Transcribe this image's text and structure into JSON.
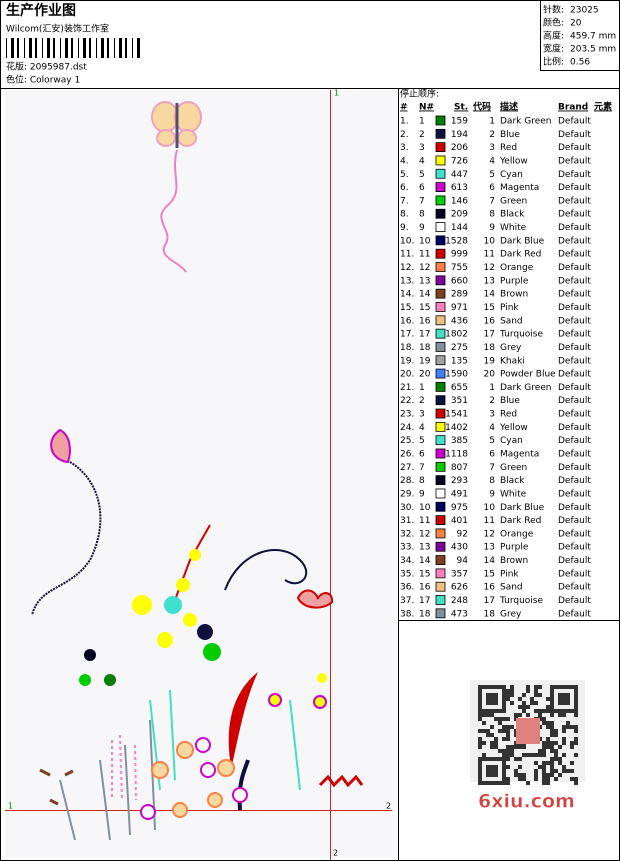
{
  "header": {
    "title": "生产作业图",
    "company": "Wilcom(汇安)装饰工作室",
    "design": "花版: 2095987.dst",
    "colorway": "色位: Colorway 1"
  },
  "stats": [
    {
      "label": "针数:",
      "value": "23025"
    },
    {
      "label": "颜色:",
      "value": "20"
    },
    {
      "label": "高度:",
      "value": "459.7 mm"
    },
    {
      "label": "宽度:",
      "value": "203.5 mm"
    },
    {
      "label": "比例:",
      "value": "0.56"
    }
  ],
  "table": {
    "title": "停止顺序:",
    "headers": [
      "#",
      "N#",
      "St.",
      "代码",
      "描述",
      "Brand",
      "元素"
    ],
    "rows": [
      {
        "index": "1.",
        "needle": "1",
        "color": "#008000",
        "stitches": 159,
        "code": "1",
        "description": "Dark Green",
        "brand": "Default"
      },
      {
        "index": "2.",
        "needle": "2",
        "color": "#101040",
        "stitches": 194,
        "code": "2",
        "description": "Blue",
        "brand": "Default"
      },
      {
        "index": "3.",
        "needle": "3",
        "color": "#d00000",
        "stitches": 206,
        "code": "3",
        "description": "Red",
        "brand": "Default"
      },
      {
        "index": "4.",
        "needle": "4",
        "color": "#ffff00",
        "stitches": 726,
        "code": "4",
        "description": "Yellow",
        "brand": "Default"
      },
      {
        "index": "5.",
        "needle": "5",
        "color": "#40e0d0",
        "stitches": 447,
        "code": "5",
        "description": "Cyan",
        "brand": "Default"
      },
      {
        "index": "6.",
        "needle": "6",
        "color": "#cc00cc",
        "stitches": 613,
        "code": "6",
        "description": "Magenta",
        "brand": "Default"
      },
      {
        "index": "7.",
        "needle": "7",
        "color": "#00cc00",
        "stitches": 146,
        "code": "7",
        "description": "Green",
        "brand": "Default"
      },
      {
        "index": "8.",
        "needle": "8",
        "color": "#000020",
        "stitches": 209,
        "code": "8",
        "description": "Black",
        "brand": "Default"
      },
      {
        "index": "9.",
        "needle": "9",
        "color": "#ffffff",
        "stitches": 144,
        "code": "9",
        "description": "White",
        "brand": "Default"
      },
      {
        "index": "10.",
        "needle": "10",
        "color": "#000060",
        "stitches": 1528,
        "code": "10",
        "description": "Dark Blue",
        "brand": "Default"
      },
      {
        "index": "11.",
        "needle": "11",
        "color": "#cc0000",
        "stitches": 999,
        "code": "11",
        "description": "Dark Red",
        "brand": "Default"
      },
      {
        "index": "12.",
        "needle": "12",
        "color": "#ff8040",
        "stitches": 755,
        "code": "12",
        "description": "Orange",
        "brand": "Default"
      },
      {
        "index": "13.",
        "needle": "13",
        "color": "#8000a0",
        "stitches": 660,
        "code": "13",
        "description": "Purple",
        "brand": "Default"
      },
      {
        "index": "14.",
        "needle": "14",
        "color": "#804020",
        "stitches": 289,
        "code": "14",
        "description": "Brown",
        "brand": "Default"
      },
      {
        "index": "15.",
        "needle": "15",
        "color": "#ff80c0",
        "stitches": 971,
        "code": "15",
        "description": "Pink",
        "brand": "Default"
      },
      {
        "index": "16.",
        "needle": "16",
        "color": "#f0c080",
        "stitches": 436,
        "code": "16",
        "description": "Sand",
        "brand": "Default"
      },
      {
        "index": "17.",
        "needle": "17",
        "color": "#40e0c0",
        "stitches": 1802,
        "code": "17",
        "description": "Turquoise",
        "brand": "Default"
      },
      {
        "index": "18.",
        "needle": "18",
        "color": "#8090a0",
        "stitches": 275,
        "code": "18",
        "description": "Grey",
        "brand": "Default"
      },
      {
        "index": "19.",
        "needle": "19",
        "color": "#a0a0a0",
        "stitches": 135,
        "code": "19",
        "description": "Khaki",
        "brand": "Default"
      },
      {
        "index": "20.",
        "needle": "20",
        "color": "#4080ff",
        "stitches": 1590,
        "code": "20",
        "description": "Powder Blue",
        "brand": "Default"
      },
      {
        "index": "21.",
        "needle": "1",
        "color": "#008000",
        "stitches": 655,
        "code": "1",
        "description": "Dark Green",
        "brand": "Default"
      },
      {
        "index": "22.",
        "needle": "2",
        "color": "#101040",
        "stitches": 351,
        "code": "2",
        "description": "Blue",
        "brand": "Default"
      },
      {
        "index": "23.",
        "needle": "3",
        "color": "#d00000",
        "stitches": 1541,
        "code": "3",
        "description": "Red",
        "brand": "Default"
      },
      {
        "index": "24.",
        "needle": "4",
        "color": "#ffff00",
        "stitches": 1402,
        "code": "4",
        "description": "Yellow",
        "brand": "Default"
      },
      {
        "index": "25.",
        "needle": "5",
        "color": "#40e0d0",
        "stitches": 385,
        "code": "5",
        "description": "Cyan",
        "brand": "Default"
      },
      {
        "index": "26.",
        "needle": "6",
        "color": "#cc00cc",
        "stitches": 1118,
        "code": "6",
        "description": "Magenta",
        "brand": "Default"
      },
      {
        "index": "27.",
        "needle": "7",
        "color": "#00cc00",
        "stitches": 807,
        "code": "7",
        "description": "Green",
        "brand": "Default"
      },
      {
        "index": "28.",
        "needle": "8",
        "color": "#000020",
        "stitches": 293,
        "code": "8",
        "description": "Black",
        "brand": "Default"
      },
      {
        "index": "29.",
        "needle": "9",
        "color": "#ffffff",
        "stitches": 491,
        "code": "9",
        "description": "White",
        "brand": "Default"
      },
      {
        "index": "30.",
        "needle": "10",
        "color": "#000060",
        "stitches": 975,
        "code": "10",
        "description": "Dark Blue",
        "brand": "Default"
      },
      {
        "index": "31.",
        "needle": "11",
        "color": "#cc0000",
        "stitches": 401,
        "code": "11",
        "description": "Dark Red",
        "brand": "Default"
      },
      {
        "index": "32.",
        "needle": "12",
        "color": "#ff8040",
        "stitches": 92,
        "code": "12",
        "description": "Orange",
        "brand": "Default"
      },
      {
        "index": "33.",
        "needle": "13",
        "color": "#8000a0",
        "stitches": 430,
        "code": "13",
        "description": "Purple",
        "brand": "Default"
      },
      {
        "index": "34.",
        "needle": "14",
        "color": "#804020",
        "stitches": 94,
        "code": "14",
        "description": "Brown",
        "brand": "Default"
      },
      {
        "index": "35.",
        "needle": "15",
        "color": "#ff80c0",
        "stitches": 357,
        "code": "15",
        "description": "Pink",
        "brand": "Default"
      },
      {
        "index": "36.",
        "needle": "16",
        "color": "#f0c080",
        "stitches": 626,
        "code": "16",
        "description": "Sand",
        "brand": "Default"
      },
      {
        "index": "37.",
        "needle": "17",
        "color": "#40e0c0",
        "stitches": 248,
        "code": "17",
        "description": "Turquoise",
        "brand": "Default"
      },
      {
        "index": "38.",
        "needle": "18",
        "color": "#8090a0",
        "stitches": 473,
        "code": "18",
        "description": "Grey",
        "brand": "Default"
      }
    ]
  },
  "markers": {
    "top": "1",
    "left": "1",
    "right": "2",
    "bottom": "2"
  },
  "watermark": "6xiu.com"
}
